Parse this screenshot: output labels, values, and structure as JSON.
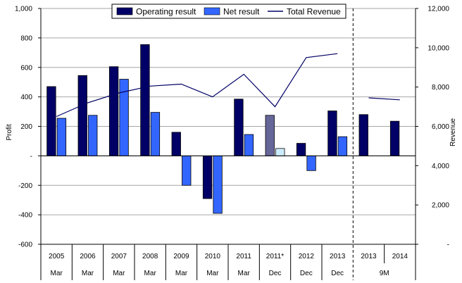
{
  "chart_data": {
    "type": "bar",
    "categories": [
      "2005",
      "2006",
      "2007",
      "2008",
      "2009",
      "2010",
      "2011",
      "2011*",
      "2012",
      "2013",
      "2013",
      "2014"
    ],
    "periods": [
      "Mar",
      "Mar",
      "Mar",
      "Mar",
      "Mar",
      "Mar",
      "Mar",
      "Dec",
      "Dec",
      "Dec",
      "9M",
      "9M"
    ],
    "period_groups": [
      {
        "label": "Mar",
        "count": 1
      },
      {
        "label": "Mar",
        "count": 1
      },
      {
        "label": "Mar",
        "count": 1
      },
      {
        "label": "Mar",
        "count": 1
      },
      {
        "label": "Mar",
        "count": 1
      },
      {
        "label": "Mar",
        "count": 1
      },
      {
        "label": "Mar",
        "count": 1
      },
      {
        "label": "Dec",
        "count": 1
      },
      {
        "label": "Dec",
        "count": 1
      },
      {
        "label": "Dec",
        "count": 1
      },
      {
        "label": "9M",
        "count": 2
      }
    ],
    "series": [
      {
        "name": "Operating result",
        "type": "bar",
        "axis": "left",
        "color": "#000066",
        "values": [
          470,
          545,
          605,
          755,
          160,
          -290,
          385,
          275,
          85,
          305,
          280,
          235
        ]
      },
      {
        "name": "Net result",
        "type": "bar",
        "axis": "left",
        "color": "#3366FF",
        "values": [
          255,
          275,
          520,
          295,
          -200,
          -390,
          145,
          50,
          -100,
          130,
          null,
          null
        ]
      },
      {
        "name": "Total Revenue",
        "type": "line",
        "axis": "right",
        "color": "#000066",
        "values": [
          6500,
          7200,
          7700,
          8050,
          8150,
          7500,
          8650,
          7000,
          9500,
          9700,
          7450,
          7350
        ]
      }
    ],
    "highlight_index": 7,
    "highlight_colors": {
      "Operating result": "#666699",
      "Net result": "#CCECFF"
    },
    "separator_after_index": 9,
    "ylabel": "Profit",
    "y2label": "Revenue",
    "ylim": [
      -600,
      1000
    ],
    "y2lim": [
      0,
      12000
    ],
    "yticks": [
      -600,
      -400,
      -200,
      0,
      200,
      400,
      600,
      800,
      1000
    ],
    "ytick_labels": [
      "-600",
      "-400",
      "-200",
      "-",
      "200",
      "400",
      "600",
      "800",
      "1,000"
    ],
    "y2ticks": [
      0,
      2000,
      4000,
      6000,
      8000,
      10000,
      12000
    ],
    "y2tick_labels": [
      "-",
      "2,000",
      "4,000",
      "6,000",
      "8,000",
      "10,000",
      "12,000"
    ],
    "grid": true,
    "legend": {
      "placement": "top-center",
      "entries": [
        "Operating result",
        "Net result",
        "Total Revenue"
      ]
    }
  }
}
